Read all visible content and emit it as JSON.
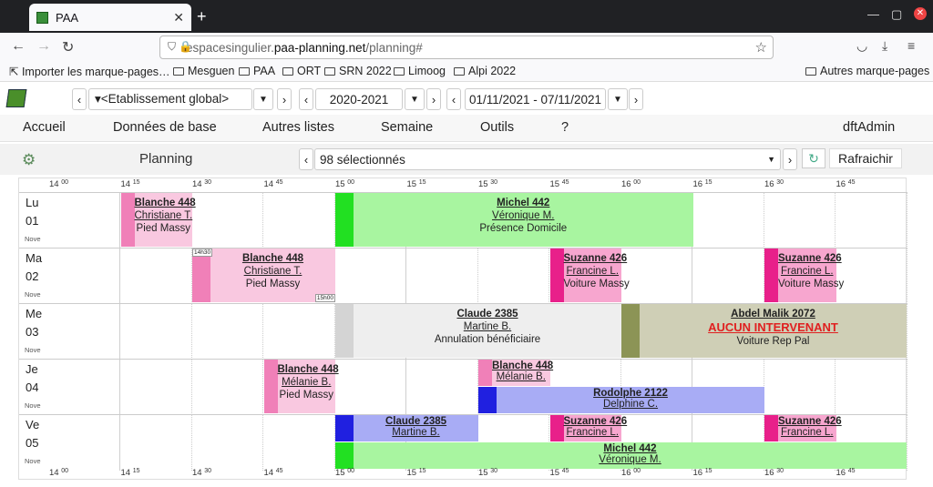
{
  "browser": {
    "tab_title": "PAA",
    "url_prefix": "espacesingulier.",
    "url_domain": "paa-planning.net",
    "url_path": "/planning#",
    "bookmarks": [
      "Importer les marque-pages…",
      "Mesguen",
      "PAA",
      "ORT",
      "SRN 2022",
      "Limoog",
      "Alpi 2022"
    ],
    "bookmarks_other": "Autres marque-pages"
  },
  "toolbar": {
    "etablissement": "▾<Etablissement global>",
    "year": "2020-2021",
    "week": "01/11/2021 - 07/11/2021"
  },
  "menu": {
    "items": [
      "Accueil",
      "Données de base",
      "Autres listes",
      "Semaine",
      "Outils",
      "?"
    ],
    "user": "dftAdmin"
  },
  "planning": {
    "label": "Planning",
    "selection": "98 sélectionnés",
    "refresh": "Rafraichir"
  },
  "axis": {
    "hours": [
      "14",
      "14",
      "14",
      "14",
      "15",
      "15",
      "15",
      "15",
      "16",
      "16",
      "16",
      "16"
    ],
    "mins": [
      "00",
      "15",
      "30",
      "45",
      "00",
      "15",
      "30",
      "45",
      "00",
      "15",
      "30",
      "45"
    ]
  },
  "days": [
    {
      "name": "Lu",
      "num": "01",
      "mon": "Nove"
    },
    {
      "name": "Ma",
      "num": "02",
      "mon": "Nove"
    },
    {
      "name": "Me",
      "num": "03",
      "mon": "Nove"
    },
    {
      "name": "Je",
      "num": "04",
      "mon": "Nove"
    },
    {
      "name": "Ve",
      "num": "05",
      "mon": "Nove"
    }
  ],
  "events": [
    {
      "day": 0,
      "start": "14:15",
      "end": "14:30",
      "t1": "Blanche 448",
      "t2": "Christiane T.",
      "t3": "Pied Massy",
      "bg": "#f9c8e0",
      "bar": "#f080b8"
    },
    {
      "day": 0,
      "start": "15:00",
      "end": "16:15",
      "t1": "Michel 442",
      "t2": "Véronique M.",
      "t3": "Présence Domicile",
      "bg": "#a8f5a0",
      "bar": "#22e022"
    },
    {
      "day": 1,
      "start": "14:30",
      "end": "15:00",
      "t1": "Blanche 448",
      "t2": "Christiane T.",
      "t3": "Pied Massy",
      "bg": "#f9c8e0",
      "bar": "#f080b8",
      "tagStart": "14h30",
      "tagEnd": "15h00"
    },
    {
      "day": 1,
      "start": "15:45",
      "end": "16:00",
      "t1": "Suzanne 426",
      "t2": "Francine L.",
      "t3": "Voiture Massy",
      "bg": "#f7a6cf",
      "bar": "#e8208a"
    },
    {
      "day": 1,
      "start": "16:30",
      "end": "16:45",
      "t1": "Suzanne 426",
      "t2": "Francine L.",
      "t3": "Voiture Massy",
      "bg": "#f7a6cf",
      "bar": "#e8208a"
    },
    {
      "day": 2,
      "start": "15:00",
      "end": "16:00",
      "t1": "Claude 2385",
      "t2": "Martine B.",
      "t3": "Annulation bénéficiaire",
      "bg": "#eeeeee",
      "bar": "#d4d4d4"
    },
    {
      "day": 2,
      "start": "16:00",
      "end": "17:00",
      "t1": "Abdel Malik 2072",
      "t2red": "AUCUN INTERVENANT",
      "t3": "Voiture Rep Pal",
      "bg": "#cfcfb6",
      "bar": "#8c9456"
    },
    {
      "day": 3,
      "start": "14:45",
      "end": "15:00",
      "t1": "Blanche 448",
      "t2": "Mélanie B.",
      "t3": "Pied Massy",
      "bg": "#f9c8e0",
      "bar": "#f080b8"
    },
    {
      "day": 3,
      "start": "15:30",
      "end": "15:45",
      "t1": "Blanche 448",
      "t2": "Mélanie B.",
      "t3": "",
      "bg": "#f9c8e0",
      "bar": "#f080b8",
      "half": "top"
    },
    {
      "day": 3,
      "start": "15:30",
      "end": "16:30",
      "t1": "Rodolphe 2122",
      "t2": "Delphine C.",
      "t3": "",
      "bg": "#a8acf5",
      "bar": "#2020e0",
      "half": "bottom"
    },
    {
      "day": 4,
      "start": "15:00",
      "end": "15:30",
      "t1": "Claude 2385",
      "t2": "Martine B.",
      "t3": "",
      "bg": "#a8acf5",
      "bar": "#2020e0",
      "half": "top"
    },
    {
      "day": 4,
      "start": "15:45",
      "end": "16:00",
      "t1": "Suzanne 426",
      "t2": "Francine L.",
      "t3": "",
      "bg": "#f7a6cf",
      "bar": "#e8208a",
      "half": "top"
    },
    {
      "day": 4,
      "start": "16:30",
      "end": "16:45",
      "t1": "Suzanne 426",
      "t2": "Francine L.",
      "t3": "",
      "bg": "#f7a6cf",
      "bar": "#e8208a",
      "half": "top"
    },
    {
      "day": 4,
      "start": "15:00",
      "end": "17:00",
      "t1": "Michel 442",
      "t2": "Véronique M.",
      "t3": "",
      "bg": "#a8f5a0",
      "bar": "#22e022",
      "half": "bottom"
    }
  ]
}
